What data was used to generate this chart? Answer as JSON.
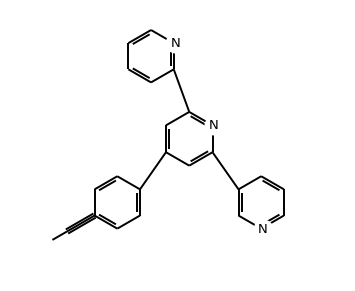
{
  "bg_color": "#ffffff",
  "line_color": "#000000",
  "line_width": 1.4,
  "font_size": 9.5,
  "figsize": [
    3.55,
    2.91
  ],
  "dpi": 100,
  "xlim": [
    0,
    10
  ],
  "ylim": [
    0,
    8.5
  ]
}
